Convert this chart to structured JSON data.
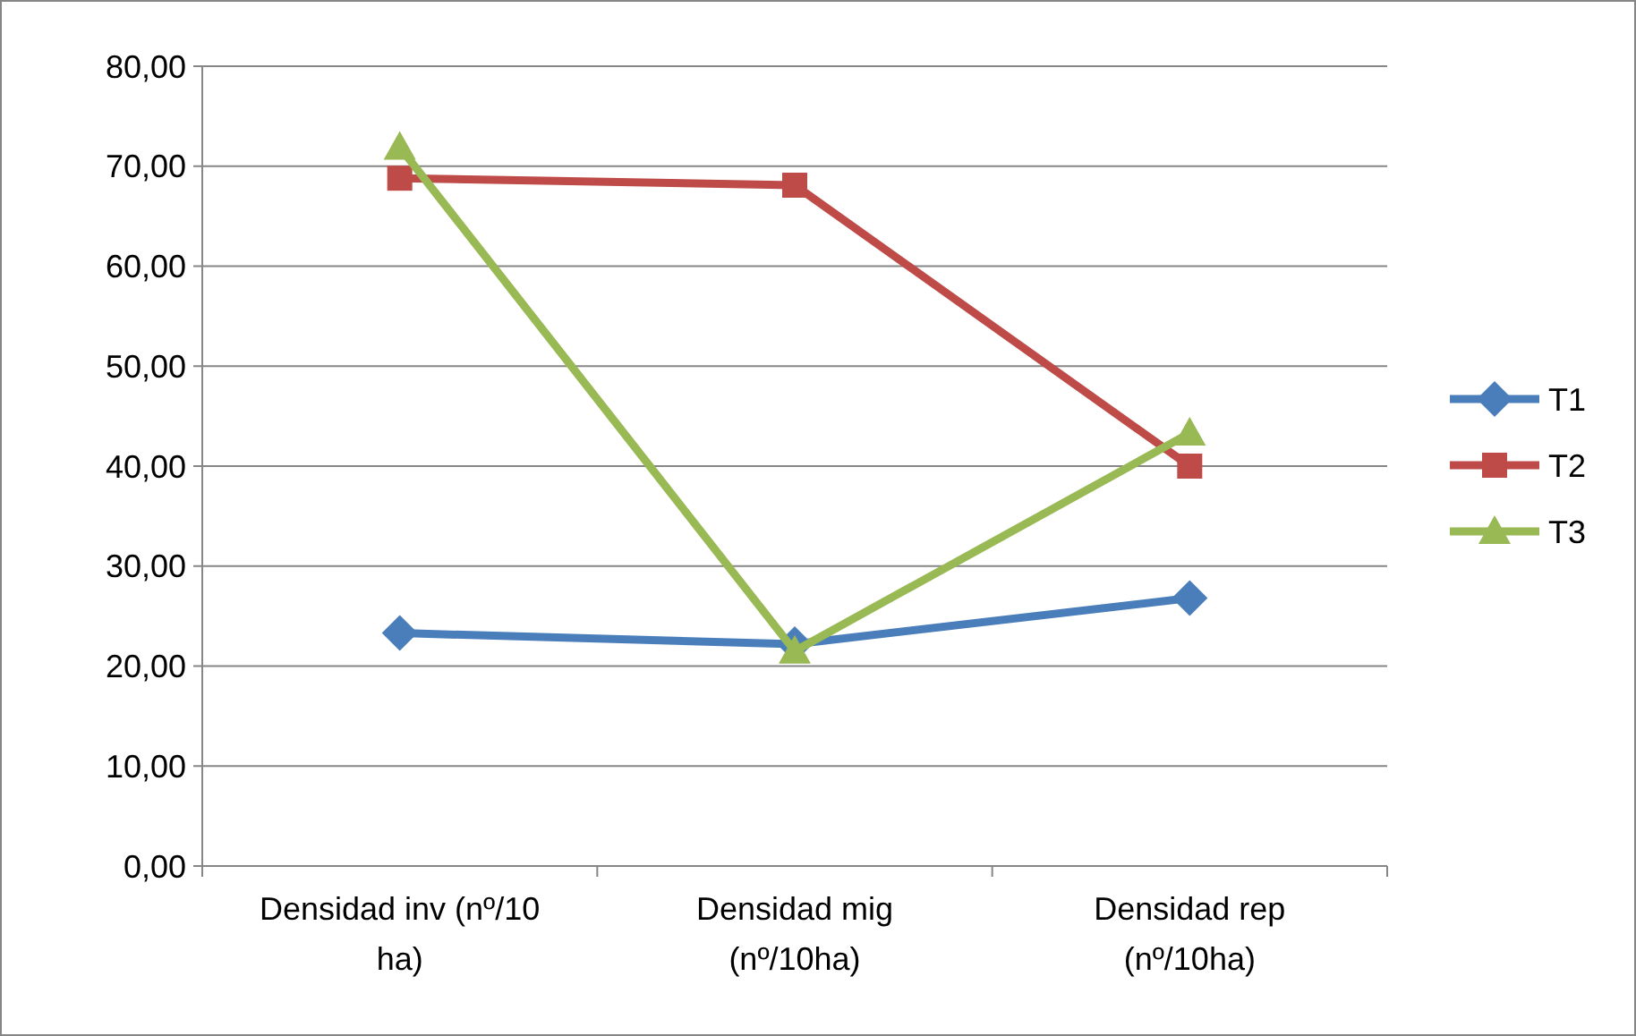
{
  "chart_data": {
    "type": "line",
    "categories": [
      "Densidad inv (nº/10 ha)",
      "Densidad mig (nº/10ha)",
      "Densidad rep (nº/10ha)"
    ],
    "series": [
      {
        "name": "T1",
        "color": "#4a7ebb",
        "marker": "diamond",
        "values": [
          23.3,
          22.2,
          26.8
        ]
      },
      {
        "name": "T2",
        "color": "#be4b48",
        "marker": "square",
        "values": [
          68.8,
          68.1,
          40.0
        ]
      },
      {
        "name": "T3",
        "color": "#98b954",
        "marker": "triangle",
        "values": [
          71.9,
          21.5,
          43.3
        ]
      }
    ],
    "ylim": [
      0,
      80
    ],
    "yticks": [
      {
        "value": 0,
        "label": "0,00"
      },
      {
        "value": 10,
        "label": "10,00"
      },
      {
        "value": 20,
        "label": "20,00"
      },
      {
        "value": 30,
        "label": "30,00"
      },
      {
        "value": 40,
        "label": "40,00"
      },
      {
        "value": 50,
        "label": "50,00"
      },
      {
        "value": 60,
        "label": "60,00"
      },
      {
        "value": 70,
        "label": "70,00"
      },
      {
        "value": 80,
        "label": "80,00"
      }
    ],
    "grid": "y",
    "legend": "right",
    "line_style": "solid"
  }
}
